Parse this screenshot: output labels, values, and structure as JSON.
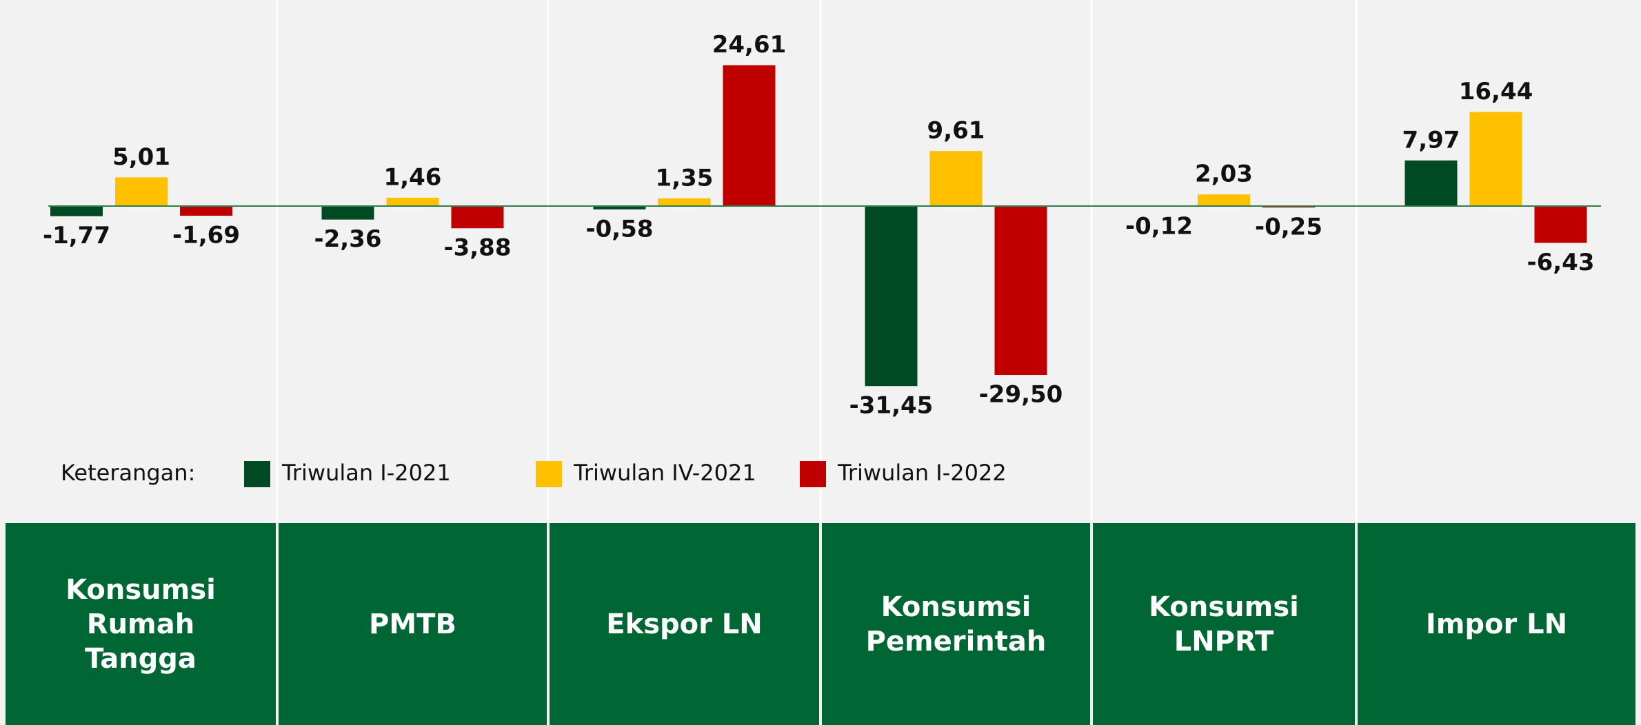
{
  "chart_data": {
    "type": "bar",
    "categories": [
      "Konsumsi Rumah Tangga",
      "PMTB",
      "Ekspor LN",
      "Konsumsi Pemerintah",
      "Konsumsi LNPRT",
      "Impor LN"
    ],
    "legend_title": "Keterangan:",
    "series": [
      {
        "name": "Triwulan I-2021",
        "color": "#004a23",
        "values": [
          -1.77,
          -2.36,
          -0.58,
          -31.45,
          -0.12,
          7.97
        ],
        "value_labels": [
          "-1,77",
          "-2,36",
          "-0,58",
          "-31,45",
          "-0,12",
          "7,97"
        ]
      },
      {
        "name": "Triwulan IV-2021",
        "color": "#ffc000",
        "values": [
          5.01,
          1.46,
          1.35,
          9.61,
          2.03,
          16.44
        ],
        "value_labels": [
          "5,01",
          "1,46",
          "1,35",
          "9,61",
          "2,03",
          "16,44"
        ]
      },
      {
        "name": "Triwulan I-2022",
        "color": "#c00000",
        "values": [
          -1.69,
          -3.88,
          24.61,
          -29.5,
          -0.25,
          -6.43
        ],
        "value_labels": [
          "-1,69",
          "-3,88",
          "24,61",
          "-29,50",
          "-0,25",
          "-6,43"
        ]
      }
    ],
    "ylim": [
      -36,
      36
    ]
  }
}
